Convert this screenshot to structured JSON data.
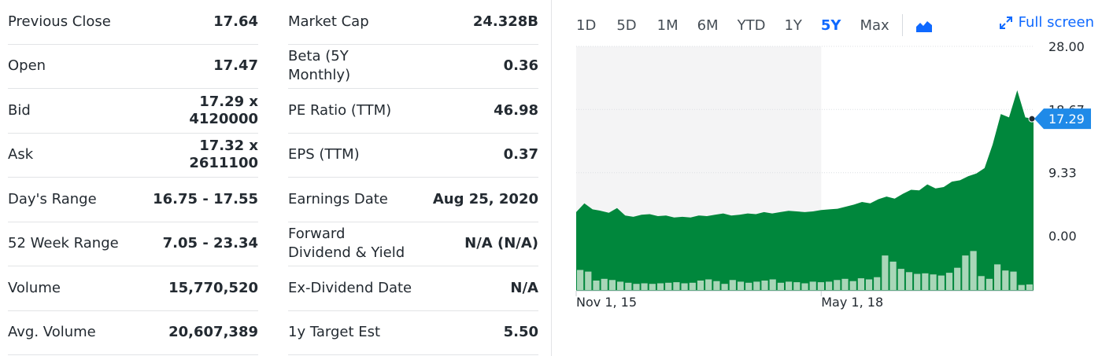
{
  "stats_left": [
    {
      "label": "Previous Close",
      "value": "17.64"
    },
    {
      "label": "Open",
      "value": "17.47"
    },
    {
      "label": "Bid",
      "value": "17.29 x\n4120000"
    },
    {
      "label": "Ask",
      "value": "17.32 x\n2611100"
    },
    {
      "label": "Day's Range",
      "value": "16.75 - 17.55"
    },
    {
      "label": "52 Week Range",
      "value": "7.05 - 23.34"
    },
    {
      "label": "Volume",
      "value": "15,770,520"
    },
    {
      "label": "Avg. Volume",
      "value": "20,607,389"
    }
  ],
  "stats_right": [
    {
      "label": "Market Cap",
      "value": "24.328B"
    },
    {
      "label": "Beta (5Y\nMonthly)",
      "value": "0.36"
    },
    {
      "label": "PE Ratio (TTM)",
      "value": "46.98"
    },
    {
      "label": "EPS (TTM)",
      "value": "0.37"
    },
    {
      "label": "Earnings Date",
      "value": "Aug 25, 2020"
    },
    {
      "label": "Forward\nDividend & Yield",
      "value": "N/A (N/A)"
    },
    {
      "label": "Ex-Dividend Date",
      "value": "N/A"
    },
    {
      "label": "1y Target Est",
      "value": "5.50"
    }
  ],
  "range_tabs": [
    {
      "label": "1D",
      "active": false
    },
    {
      "label": "5D",
      "active": false
    },
    {
      "label": "1M",
      "active": false
    },
    {
      "label": "6M",
      "active": false
    },
    {
      "label": "YTD",
      "active": false
    },
    {
      "label": "1Y",
      "active": false
    },
    {
      "label": "5Y",
      "active": true
    },
    {
      "label": "Max",
      "active": false
    }
  ],
  "chart_type_icon": "mountain-chart-icon",
  "fullscreen_label": "Full screen",
  "fullscreen_icon": "expand-arrows-icon",
  "colors": {
    "area": "#00873c",
    "volume": "#a9d6b8",
    "accent": "#0f69ff",
    "price_tag": "#1f8ae8"
  },
  "chart_data": {
    "type": "area",
    "y_ticks": [
      "28.00",
      "18.67",
      "9.33",
      "0.00"
    ],
    "ylim": [
      0,
      28
    ],
    "x_ticks": [
      {
        "label": "Nov 1, 15",
        "at": 0
      },
      {
        "label": "May 1, 18",
        "at": 30
      }
    ],
    "current_price": "17.29",
    "prices": [
      3.5,
      4.8,
      3.9,
      3.7,
      3.4,
      4.1,
      3.0,
      2.8,
      3.1,
      3.2,
      2.9,
      3.0,
      2.7,
      2.8,
      2.7,
      3.0,
      2.9,
      3.1,
      3.3,
      3.0,
      3.1,
      3.3,
      3.2,
      3.5,
      3.3,
      3.5,
      3.7,
      3.6,
      3.5,
      3.6,
      3.8,
      3.9,
      4.0,
      4.3,
      4.6,
      5.0,
      4.8,
      5.4,
      5.8,
      5.5,
      6.2,
      6.8,
      6.7,
      7.6,
      7.0,
      7.2,
      8.0,
      8.2,
      8.8,
      9.2,
      10.0,
      13.5,
      18.0,
      17.5,
      21.5,
      17.5,
      17.29
    ],
    "volumes": [
      0.36,
      0.33,
      0.17,
      0.2,
      0.18,
      0.15,
      0.13,
      0.11,
      0.12,
      0.11,
      0.12,
      0.13,
      0.14,
      0.12,
      0.13,
      0.17,
      0.19,
      0.16,
      0.11,
      0.18,
      0.15,
      0.13,
      0.15,
      0.17,
      0.19,
      0.13,
      0.15,
      0.14,
      0.12,
      0.15,
      0.14,
      0.15,
      0.18,
      0.2,
      0.16,
      0.21,
      0.19,
      0.23,
      0.62,
      0.51,
      0.38,
      0.32,
      0.29,
      0.3,
      0.28,
      0.26,
      0.31,
      0.4,
      0.62,
      0.7,
      0.25,
      0.2,
      0.46,
      0.35,
      0.33,
      0.09,
      0.1
    ]
  }
}
